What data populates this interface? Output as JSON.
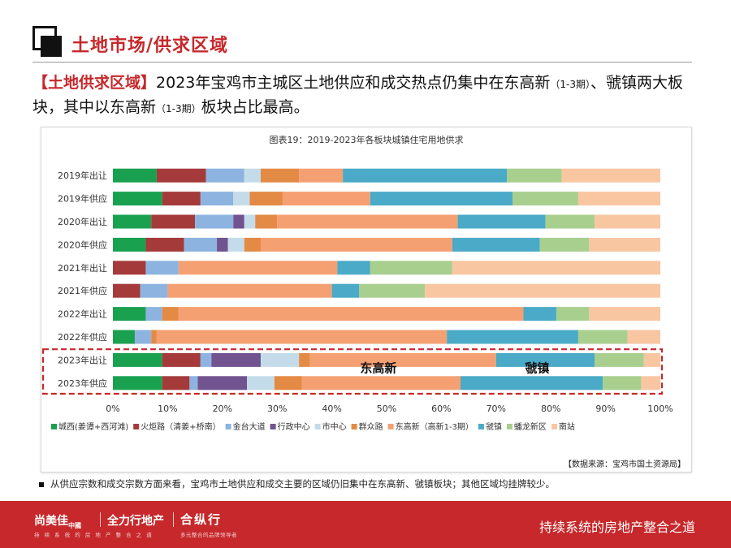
{
  "header": {
    "title": "土地市场/供求区域",
    "headline_tag": "【土地供求区域】",
    "headline_part1": "2023年宝鸡市主城区土地供应和成交热点仍集中在东高新",
    "headline_small1": "（1-3期）",
    "headline_part2": "、虢镇两大板块，其中以东高新",
    "headline_small2": "（1-3期）",
    "headline_part3": "板块占比最高。"
  },
  "chart_data": {
    "type": "bar",
    "orientation": "horizontal",
    "stacked": "percent",
    "title": "图表19：2019-2023年各板块城镇住宅用地供求",
    "categories": [
      "2019年出让",
      "2019年供应",
      "2020年出让",
      "2020年供应",
      "2021年出让",
      "2021年供应",
      "2022年出让",
      "2022年供应",
      "2023年出让",
      "2023年供应"
    ],
    "xlim": [
      0,
      100
    ],
    "x_ticks": [
      "0%",
      "10%",
      "20%",
      "30%",
      "40%",
      "50%",
      "60%",
      "70%",
      "80%",
      "90%",
      "100%"
    ],
    "legend_position": "bottom",
    "series": [
      {
        "name": "城西(姜谭+西河滩)",
        "color": "#1aa150",
        "values": [
          8,
          9,
          7,
          6,
          0,
          0,
          6,
          4,
          9,
          9
        ]
      },
      {
        "name": "火炬路（清姜+桥南）",
        "color": "#a53a3b",
        "values": [
          9,
          7,
          8,
          7,
          6,
          5,
          0,
          0,
          7,
          5
        ]
      },
      {
        "name": "金台大道",
        "color": "#8db4e0",
        "values": [
          7,
          6,
          7,
          6,
          6,
          5,
          3,
          3,
          2,
          1.5
        ]
      },
      {
        "name": "行政中心",
        "color": "#71538f",
        "values": [
          0,
          0,
          2,
          2,
          0,
          0,
          0,
          0,
          9,
          9
        ]
      },
      {
        "name": "市中心",
        "color": "#c4dcea",
        "values": [
          3,
          3,
          2,
          3,
          0,
          0,
          0,
          0,
          7,
          5
        ]
      },
      {
        "name": "群众路",
        "color": "#e38a44",
        "values": [
          7,
          6,
          4,
          3,
          0,
          0,
          3,
          1,
          2,
          5
        ]
      },
      {
        "name": "东高新（高新1-3期）",
        "color": "#f5a072",
        "values": [
          8,
          16,
          33,
          35,
          29,
          30,
          63,
          53,
          34,
          29
        ]
      },
      {
        "name": "虢镇",
        "color": "#4aaac7",
        "values": [
          30,
          26,
          16,
          16,
          6,
          5,
          6,
          24,
          18,
          26
        ]
      },
      {
        "name": "蟠龙新区",
        "color": "#a9cf8f",
        "values": [
          10,
          12,
          9,
          9,
          15,
          12,
          6,
          9,
          9,
          7
        ]
      },
      {
        "name": "南站",
        "color": "#f9c6a2",
        "values": [
          18,
          15,
          12,
          13,
          38,
          43,
          13,
          6,
          3,
          3.5
        ]
      }
    ],
    "annotations": [
      "东高新",
      "虢镇"
    ],
    "highlight_rows": [
      "2023年出让",
      "2023年供应"
    ]
  },
  "source": "【数据来源：宝鸡市国土资源局】",
  "note": "从供应宗数和成交宗数方面来看，宝鸡市土地供应和成交主要的区域仍旧集中在东高新、虢镇板块；其他区域均挂牌较少。",
  "footer": {
    "brand1": "尚美佳",
    "brand1_sub": "中國",
    "brand2": "全力行地产",
    "brand3": "合纵行",
    "brand1_tagline": "持 续 系 统 的 房 地 产 整 合 之 道",
    "brand3_tagline": "多元整合的品牌领导者",
    "slogan": "持续系统的房地产整合之道"
  }
}
